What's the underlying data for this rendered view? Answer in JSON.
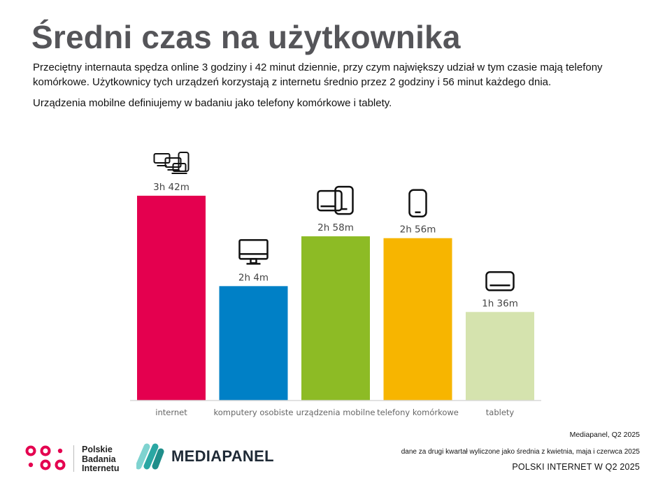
{
  "header": {
    "title": "Średni czas na użytkownika",
    "intro_1": "Przeciętny internauta spędza online 3 godziny i 42 minut dziennie, przy czym największy udział w tym czasie mają telefony komórkowe. Użytkownicy tych urządzeń korzystają z internetu średnio przez 2 godziny i 56 minut każdego dnia.",
    "intro_2": "Urządzenia mobilne definiujemy w badaniu jako telefony komórkowe i tablety."
  },
  "chart_data": {
    "type": "bar",
    "title": "",
    "xlabel": "",
    "ylabel": "",
    "unit": "minutes",
    "categories": [
      "internet",
      "komputery osobiste",
      "urządzenia mobilne",
      "telefony komórkowe",
      "tablety"
    ],
    "values": [
      222,
      124,
      178,
      176,
      96
    ],
    "value_labels": [
      "3h 42m",
      "2h 4m",
      "2h 58m",
      "2h 56m",
      "1h 36m"
    ],
    "colors": [
      "#e4004f",
      "#0080c6",
      "#8dbb25",
      "#f7b500",
      "#d5e3ae"
    ],
    "icons": [
      "all-devices-icon",
      "desktop-monitor-icon",
      "tablet-and-phone-icon",
      "smartphone-icon",
      "tablet-icon"
    ],
    "ylim": [
      0,
      240
    ],
    "grid": false,
    "legend": "none"
  },
  "footer": {
    "source": "Mediapanel, Q2 2025",
    "note": "dane za drugi kwartał wyliczone jako średnia z kwietnia, maja i czerwca 2025",
    "brand": "POLSKI INTERNET W Q2 2025",
    "pbi_line1": "Polskie",
    "pbi_line2": "Badania",
    "pbi_line3": "Internetu",
    "mediapanel": "MEDIAPANEL",
    "pbi_color": "#e4004f",
    "mediapanel_colors": [
      "#7fd3d0",
      "#2aa7a3",
      "#1f2a36"
    ]
  }
}
